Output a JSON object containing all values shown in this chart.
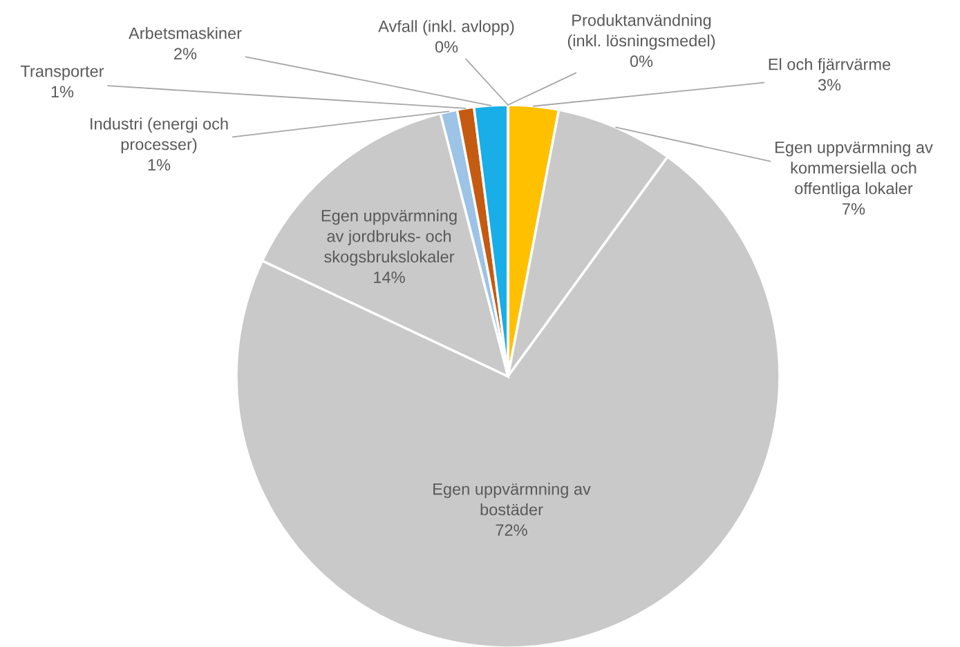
{
  "chart_data": {
    "type": "pie",
    "categories": [
      "El och fjärrvärme",
      "Egen uppvärmning av kommersiella och offentliga lokaler",
      "Egen uppvärmning av bostäder",
      "Egen uppvärmning av jordbruks- och skogsbrukslokaler",
      "Industri (energi och processer)",
      "Transporter",
      "Arbetsmaskiner",
      "Avfall (inkl. avlopp)",
      "Produktanvändning (inkl. lösningsmedel)"
    ],
    "values": [
      3,
      7,
      72,
      14,
      1,
      1,
      2,
      0,
      0
    ],
    "value_labels": [
      "3%",
      "7%",
      "72%",
      "14%",
      "1%",
      "1%",
      "2%",
      "0%",
      "0%"
    ],
    "colors": [
      "#ffc000",
      "#c9c9c9",
      "#c9c9c9",
      "#c9c9c9",
      "#9dc3e6",
      "#c55a11",
      "#19aee8",
      "#70ad47",
      "#4472c4"
    ]
  }
}
